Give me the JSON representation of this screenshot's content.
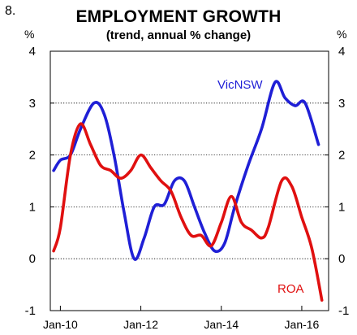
{
  "figure_number": "8.",
  "chart_data": {
    "type": "line",
    "title": "EMPLOYMENT GROWTH",
    "subtitle": "(trend, annual % change)",
    "ylabel_left": "%",
    "ylabel_right": "%",
    "ylim": [
      -1,
      4
    ],
    "yticks": [
      4,
      3,
      2,
      1,
      0,
      -1
    ],
    "xlim": [
      "2009-10",
      "2016-09"
    ],
    "xticks": [
      {
        "label": "Jan-10",
        "date": "2010-01"
      },
      {
        "label": "Jan-12",
        "date": "2012-01"
      },
      {
        "label": "Jan-14",
        "date": "2014-01"
      },
      {
        "label": "Jan-16",
        "date": "2016-01"
      }
    ],
    "grid": "horizontal dotted",
    "series": [
      {
        "name": "VicNSW",
        "color": "#1f1fd6",
        "points": [
          [
            "2009-11",
            1.7
          ],
          [
            "2010-01",
            1.9
          ],
          [
            "2010-04",
            2.0
          ],
          [
            "2010-07",
            2.5
          ],
          [
            "2010-11",
            3.0
          ],
          [
            "2011-02",
            2.8
          ],
          [
            "2011-05",
            2.0
          ],
          [
            "2011-08",
            0.9
          ],
          [
            "2011-11",
            0.0
          ],
          [
            "2012-02",
            0.4
          ],
          [
            "2012-05",
            1.0
          ],
          [
            "2012-08",
            1.05
          ],
          [
            "2012-11",
            1.5
          ],
          [
            "2013-02",
            1.5
          ],
          [
            "2013-05",
            1.0
          ],
          [
            "2013-08",
            0.5
          ],
          [
            "2013-11",
            0.15
          ],
          [
            "2014-02",
            0.3
          ],
          [
            "2014-05",
            1.0
          ],
          [
            "2014-09",
            1.8
          ],
          [
            "2015-01",
            2.5
          ],
          [
            "2015-05",
            3.4
          ],
          [
            "2015-08",
            3.1
          ],
          [
            "2015-11",
            2.95
          ],
          [
            "2016-02",
            3.0
          ],
          [
            "2016-06",
            2.2
          ]
        ]
      },
      {
        "name": "ROA",
        "color": "#e01010",
        "points": [
          [
            "2009-11",
            0.15
          ],
          [
            "2010-01",
            0.6
          ],
          [
            "2010-04",
            2.0
          ],
          [
            "2010-07",
            2.6
          ],
          [
            "2010-10",
            2.2
          ],
          [
            "2011-01",
            1.8
          ],
          [
            "2011-04",
            1.7
          ],
          [
            "2011-07",
            1.55
          ],
          [
            "2011-10",
            1.7
          ],
          [
            "2012-01",
            2.0
          ],
          [
            "2012-04",
            1.75
          ],
          [
            "2012-07",
            1.5
          ],
          [
            "2012-10",
            1.3
          ],
          [
            "2013-01",
            0.8
          ],
          [
            "2013-04",
            0.45
          ],
          [
            "2013-07",
            0.45
          ],
          [
            "2013-10",
            0.25
          ],
          [
            "2014-01",
            0.7
          ],
          [
            "2014-04",
            1.2
          ],
          [
            "2014-07",
            0.7
          ],
          [
            "2014-10",
            0.55
          ],
          [
            "2015-01",
            0.4
          ],
          [
            "2015-03",
            0.6
          ],
          [
            "2015-07",
            1.5
          ],
          [
            "2015-10",
            1.4
          ],
          [
            "2016-01",
            0.8
          ],
          [
            "2016-04",
            0.2
          ],
          [
            "2016-07",
            -0.8
          ]
        ]
      }
    ]
  }
}
